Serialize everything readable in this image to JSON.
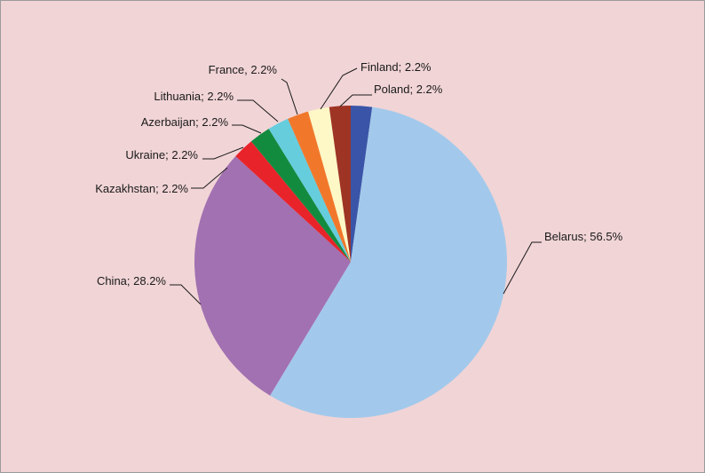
{
  "chart_data": {
    "type": "pie",
    "title": "",
    "slices": [
      {
        "label": "Poland; 2.2%",
        "value": 2.2,
        "color": "#3a55a8"
      },
      {
        "label": "Belarus; 56.5%",
        "value": 56.5,
        "color": "#a2c9eb"
      },
      {
        "label": "China; 28.2%",
        "value": 28.2,
        "color": "#a271b1"
      },
      {
        "label": "Kazakhstan; 2.2%",
        "value": 2.2,
        "color": "#e8232a"
      },
      {
        "label": "Ukraine;  2.2%",
        "value": 2.2,
        "color": "#138b3f"
      },
      {
        "label": "Azerbaijan; 2.2%",
        "value": 2.2,
        "color": "#66cddd"
      },
      {
        "label": "Lithuania; 2.2%",
        "value": 2.2,
        "color": "#f1782b"
      },
      {
        "label": "France, 2.2%",
        "value": 2.2,
        "color": "#fdf8c6"
      },
      {
        "label": "Finland; 2.2%",
        "value": 2.2,
        "color": "#9e3424"
      }
    ],
    "legend": "none",
    "label_style": "category; percent with leader lines"
  }
}
